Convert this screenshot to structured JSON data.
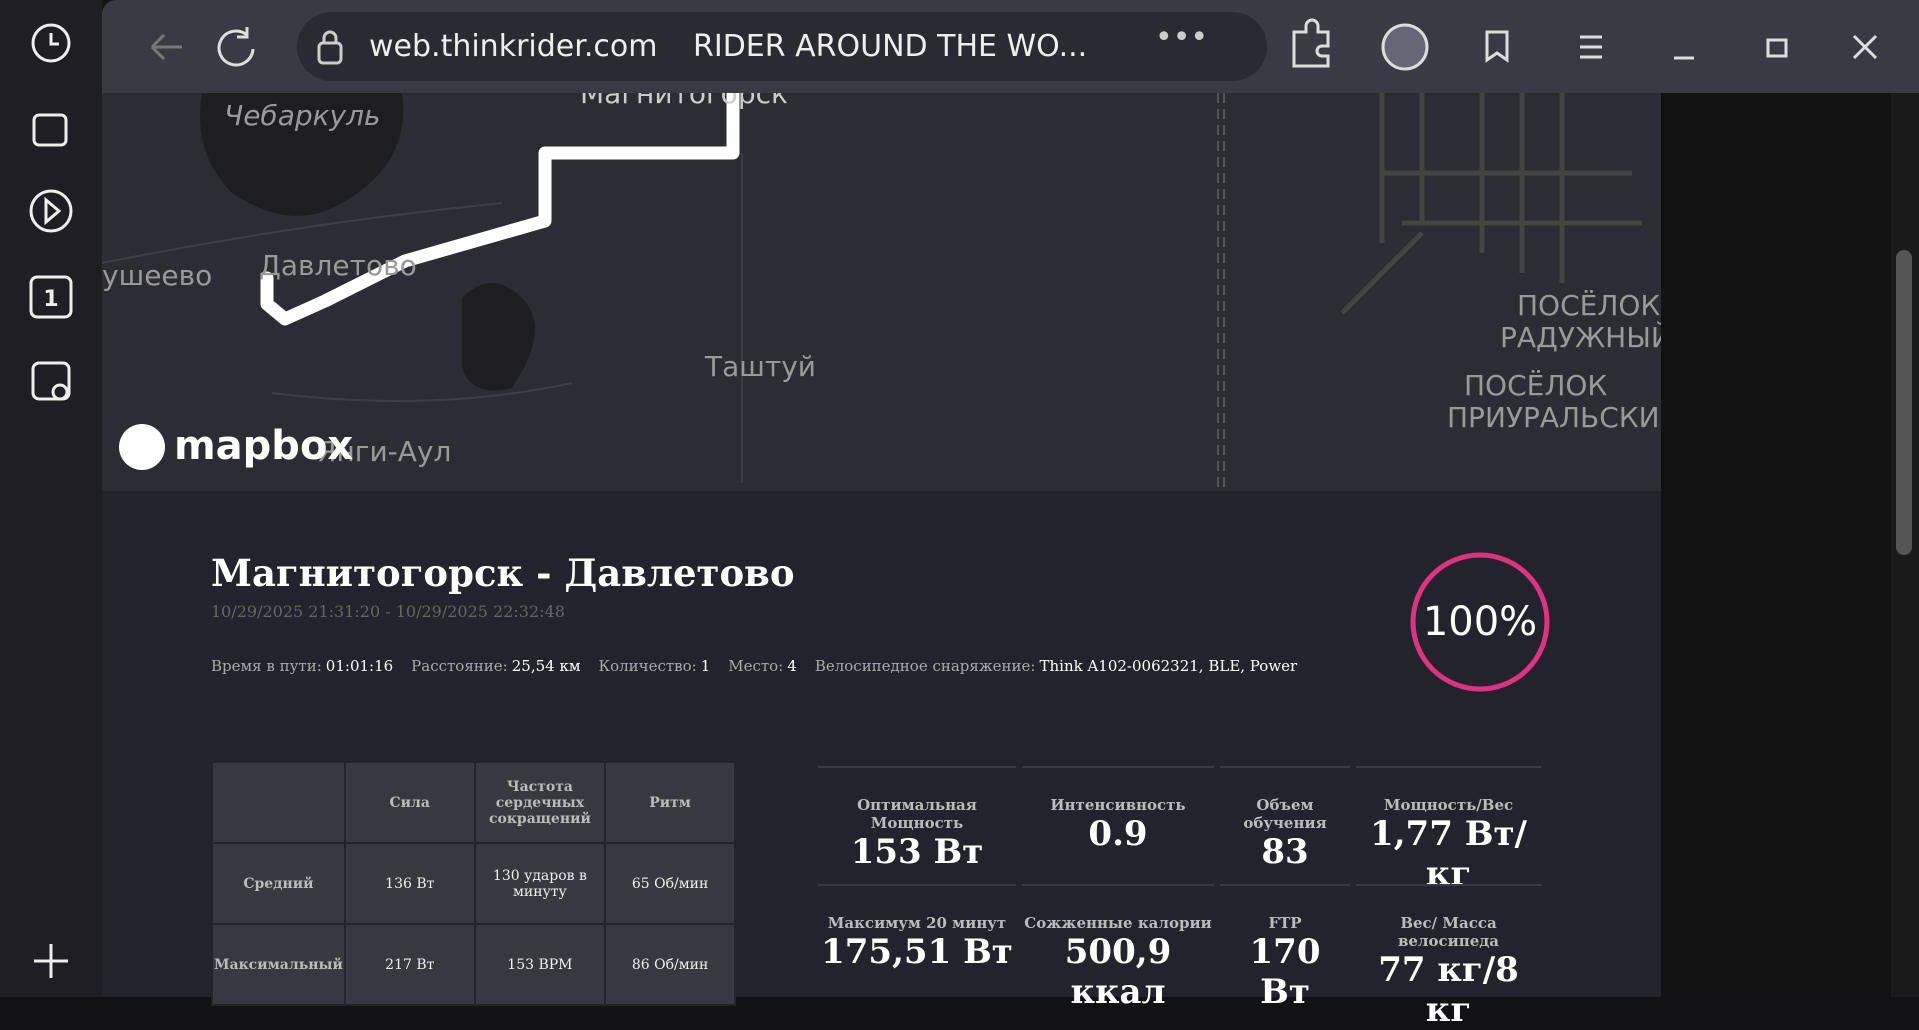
{
  "browser": {
    "url": "web.thinkrider.com",
    "tab_title": "RIDER AROUND THE WO...",
    "sidebar_badge": "1"
  },
  "map": {
    "labels": [
      "Чебаркуль",
      "Магнитогорск",
      "ушеево",
      "Давлетово",
      "Таштуй",
      "ПОСЁЛОК",
      "РАДУЖНЫЙ",
      "ПОСЁЛОК",
      "ПРИУРАЛЬСКИ",
      "Янги-Аул"
    ],
    "attribution": "mapbox"
  },
  "activity": {
    "title": "Магнитогорск - Давлетово",
    "date_range": "10/29/2025 21:31:20 - 10/29/2025 22:32:48",
    "stats": [
      {
        "label": "Время в пути:",
        "value": "01:01:16"
      },
      {
        "label": "Расстояние:",
        "value": "25,54 км"
      },
      {
        "label": "Количество:",
        "value": "1"
      },
      {
        "label": "Место:",
        "value": "4"
      },
      {
        "label": "Велосипедное снаряжение:",
        "value": "Think A102-0062321, BLE, Power"
      }
    ],
    "completion": "100%"
  },
  "table": {
    "header": [
      "",
      "Сила",
      "Частота сердечных сокращений",
      "Ритм"
    ],
    "rows": [
      [
        "Средний",
        "136 Вт",
        "130 ударов в минуту",
        "65 Об/мин"
      ],
      [
        "Максимальный",
        "217 Вт",
        "153 BPM",
        "86 Об/мин"
      ]
    ]
  },
  "metrics": [
    {
      "label": "Оптимальная Мощность",
      "value": "153 Вт"
    },
    {
      "label": "Интенсивность",
      "value": "0.9"
    },
    {
      "label": "Объем обучения",
      "value": "83"
    },
    {
      "label": "Мощность/Вес",
      "value": "1,77 Вт/кг"
    },
    {
      "label": "Максимум 20 минут",
      "value": "175,51 Вт"
    },
    {
      "label": "Сожженные калории",
      "value": "500,9 ккал"
    },
    {
      "label": "FTP",
      "value": "170 Вт"
    },
    {
      "label": "Вес/ Масса велосипеда",
      "value": "77 кг/8 кг"
    }
  ]
}
